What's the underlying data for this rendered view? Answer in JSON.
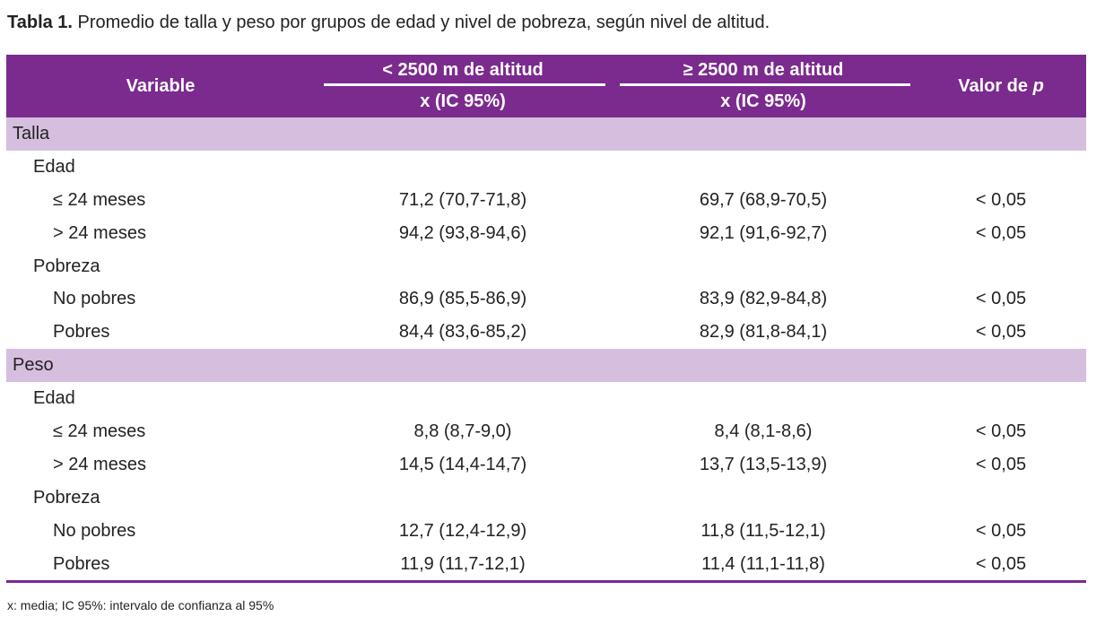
{
  "caption": {
    "label": "Tabla 1.",
    "text": " Promedio de talla y peso por grupos de edad y nivel de pobreza, según nivel de altitud."
  },
  "header": {
    "variable": "Variable",
    "group1": "< 2500 m de altitud",
    "group2": "≥ 2500 m de altitud",
    "sub1": "x (IC 95%)",
    "sub2": "x (IC 95%)",
    "pvalue_prefix": "Valor de ",
    "pvalue_symbol": "p"
  },
  "sections": [
    {
      "title": "Talla",
      "groups": [
        {
          "title": "Edad",
          "rows": [
            {
              "label": "≤ 24 meses",
              "low": "71,2 (70,7-71,8)",
              "high": "69,7 (68,9-70,5)",
              "p": "< 0,05"
            },
            {
              "label": "> 24 meses",
              "low": "94,2 (93,8-94,6)",
              "high": "92,1 (91,6-92,7)",
              "p": "< 0,05"
            }
          ]
        },
        {
          "title": "Pobreza",
          "rows": [
            {
              "label": "No pobres",
              "low": "86,9 (85,5-86,9)",
              "high": "83,9 (82,9-84,8)",
              "p": "< 0,05"
            },
            {
              "label": "Pobres",
              "low": "84,4 (83,6-85,2)",
              "high": "82,9 (81,8-84,1)",
              "p": "< 0,05"
            }
          ]
        }
      ]
    },
    {
      "title": "Peso",
      "groups": [
        {
          "title": "Edad",
          "rows": [
            {
              "label": "≤ 24 meses",
              "low": "8,8 (8,7-9,0)",
              "high": "8,4 (8,1-8,6)",
              "p": "< 0,05"
            },
            {
              "label": "> 24 meses",
              "low": "14,5 (14,4-14,7)",
              "high": "13,7 (13,5-13,9)",
              "p": "< 0,05"
            }
          ]
        },
        {
          "title": "Pobreza",
          "rows": [
            {
              "label": "No pobres",
              "low": "12,7 (12,4-12,9)",
              "high": "11,8 (11,5-12,1)",
              "p": "< 0,05"
            },
            {
              "label": "Pobres",
              "low": "11,9 (11,7-12,1)",
              "high": "11,4 (11,1-11,8)",
              "p": "< 0,05"
            }
          ]
        }
      ]
    }
  ],
  "footnote": "x: media; IC 95%: intervalo de confianza al 95%",
  "colors": {
    "header": "#7b2a8e",
    "section": "#d6bedf"
  }
}
